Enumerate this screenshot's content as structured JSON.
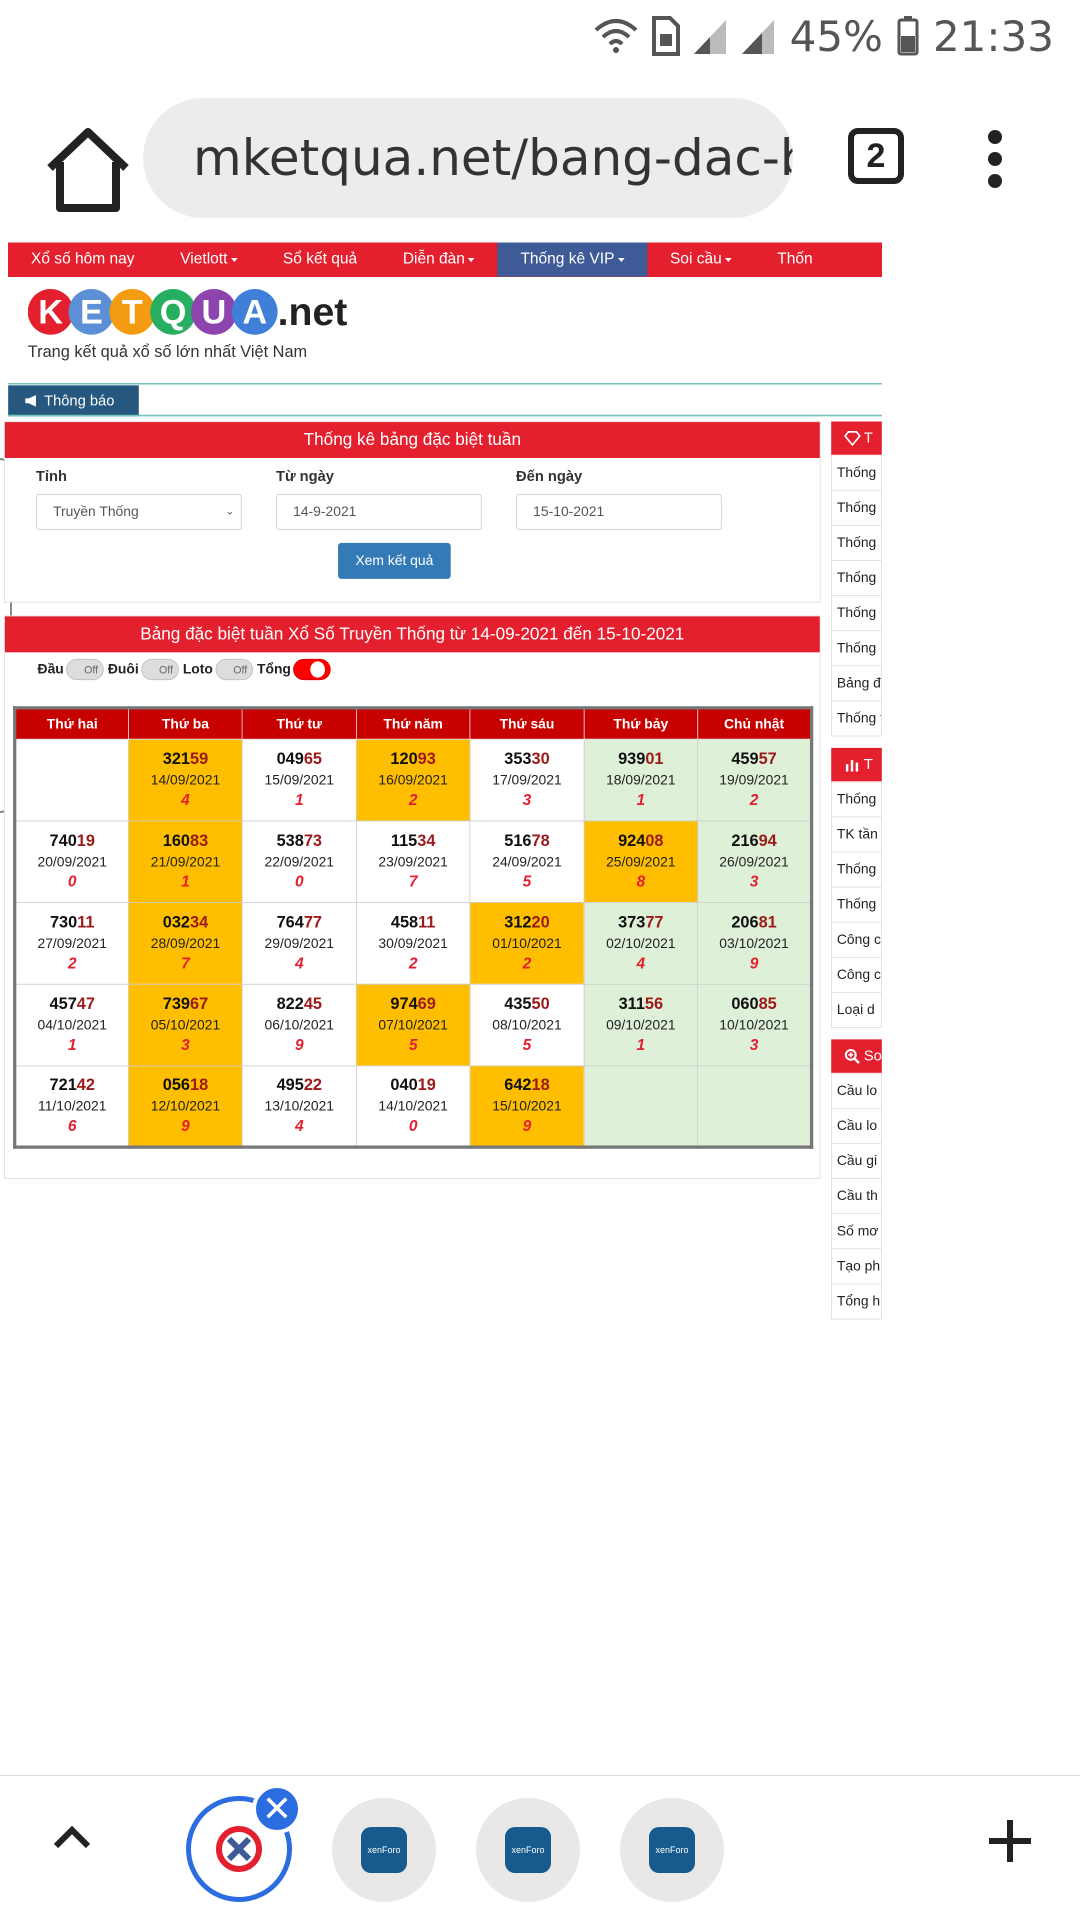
{
  "status": {
    "battery": "45%",
    "time": "21:33"
  },
  "browser": {
    "url": "mketqua.net/bang-dac-b",
    "tab_count": "2"
  },
  "nav": [
    "Xổ số hôm nay",
    "Vietlott",
    "Sổ kết quả",
    "Diễn đàn",
    "Thống kê VIP",
    "Soi cầu",
    "Thốn"
  ],
  "site": {
    "logo_letters": [
      "K",
      "E",
      "T",
      "Q",
      "U",
      "A"
    ],
    "logo_suffix": ".net",
    "tagline": "Trang kết quả xổ số lớn nhất Việt Nam",
    "notice": "Thông báo"
  },
  "form": {
    "title": "Thống kê bảng đặc biệt tuần",
    "province_label": "Tỉnh",
    "province_value": "Truyền Thống",
    "from_label": "Từ ngày",
    "from_value": "14-9-2021",
    "to_label": "Đến ngày",
    "to_value": "15-10-2021",
    "submit": "Xem kết quả"
  },
  "results": {
    "title": "Bảng đặc biệt tuần Xổ Số Truyền Thống từ 14-09-2021 đến 15-10-2021",
    "toggles": [
      {
        "label": "Đầu",
        "state": "Off"
      },
      {
        "label": "Đuôi",
        "state": "Off"
      },
      {
        "label": "Loto",
        "state": "Off"
      },
      {
        "label": "Tổng",
        "state": "On"
      }
    ],
    "headers": [
      "Thứ hai",
      "Thứ ba",
      "Thứ tư",
      "Thứ năm",
      "Thứ sáu",
      "Thứ bảy",
      "Chủ nhật"
    ],
    "rows": [
      [
        {},
        {
          "head": "321",
          "tail": "59",
          "date": "14/09/2021",
          "total": "4",
          "hl": "yellow"
        },
        {
          "head": "049",
          "tail": "65",
          "date": "15/09/2021",
          "total": "1"
        },
        {
          "head": "120",
          "tail": "93",
          "date": "16/09/2021",
          "total": "2",
          "hl": "yellow"
        },
        {
          "head": "353",
          "tail": "30",
          "date": "17/09/2021",
          "total": "3"
        },
        {
          "head": "939",
          "tail": "01",
          "date": "18/09/2021",
          "total": "1",
          "hl": "green"
        },
        {
          "head": "459",
          "tail": "57",
          "date": "19/09/2021",
          "total": "2",
          "hl": "green"
        }
      ],
      [
        {
          "head": "740",
          "tail": "19",
          "date": "20/09/2021",
          "total": "0"
        },
        {
          "head": "160",
          "tail": "83",
          "date": "21/09/2021",
          "total": "1",
          "hl": "yellow"
        },
        {
          "head": "538",
          "tail": "73",
          "date": "22/09/2021",
          "total": "0"
        },
        {
          "head": "115",
          "tail": "34",
          "date": "23/09/2021",
          "total": "7"
        },
        {
          "head": "516",
          "tail": "78",
          "date": "24/09/2021",
          "total": "5"
        },
        {
          "head": "924",
          "tail": "08",
          "date": "25/09/2021",
          "total": "8",
          "hl": "yellow"
        },
        {
          "head": "216",
          "tail": "94",
          "date": "26/09/2021",
          "total": "3",
          "hl": "green"
        }
      ],
      [
        {
          "head": "730",
          "tail": "11",
          "date": "27/09/2021",
          "total": "2"
        },
        {
          "head": "032",
          "tail": "34",
          "date": "28/09/2021",
          "total": "7",
          "hl": "yellow"
        },
        {
          "head": "764",
          "tail": "77",
          "date": "29/09/2021",
          "total": "4"
        },
        {
          "head": "458",
          "tail": "11",
          "date": "30/09/2021",
          "total": "2"
        },
        {
          "head": "312",
          "tail": "20",
          "date": "01/10/2021",
          "total": "2",
          "hl": "yellow"
        },
        {
          "head": "373",
          "tail": "77",
          "date": "02/10/2021",
          "total": "4",
          "hl": "green"
        },
        {
          "head": "206",
          "tail": "81",
          "date": "03/10/2021",
          "total": "9",
          "hl": "green"
        }
      ],
      [
        {
          "head": "457",
          "tail": "47",
          "date": "04/10/2021",
          "total": "1"
        },
        {
          "head": "739",
          "tail": "67",
          "date": "05/10/2021",
          "total": "3",
          "hl": "yellow"
        },
        {
          "head": "822",
          "tail": "45",
          "date": "06/10/2021",
          "total": "9"
        },
        {
          "head": "974",
          "tail": "69",
          "date": "07/10/2021",
          "total": "5",
          "hl": "yellow"
        },
        {
          "head": "435",
          "tail": "50",
          "date": "08/10/2021",
          "total": "5"
        },
        {
          "head": "311",
          "tail": "56",
          "date": "09/10/2021",
          "total": "1",
          "hl": "green"
        },
        {
          "head": "060",
          "tail": "85",
          "date": "10/10/2021",
          "total": "3",
          "hl": "green"
        }
      ],
      [
        {
          "head": "721",
          "tail": "42",
          "date": "11/10/2021",
          "total": "6"
        },
        {
          "head": "056",
          "tail": "18",
          "date": "12/10/2021",
          "total": "9",
          "hl": "yellow"
        },
        {
          "head": "495",
          "tail": "22",
          "date": "13/10/2021",
          "total": "4"
        },
        {
          "head": "040",
          "tail": "19",
          "date": "14/10/2021",
          "total": "0"
        },
        {
          "head": "642",
          "tail": "18",
          "date": "15/10/2021",
          "total": "9",
          "hl": "yellow"
        },
        {
          "hl": "green"
        },
        {
          "hl": "green"
        }
      ]
    ]
  },
  "sidebar": {
    "section1": {
      "title": "T",
      "items": [
        "Thống",
        "Thống loto",
        "Thống",
        "Thống loto",
        "Thống",
        "Thống",
        "Bảng đ",
        "Thống theo Đ"
      ]
    },
    "section2": {
      "title": "T",
      "items": [
        "Thống",
        "TK tần",
        "Thống",
        "Thống",
        "Công c",
        "Công c VIP",
        "Loại d"
      ]
    },
    "section3": {
      "title": "So",
      "items": [
        "Cầu lo",
        "Cầu lo",
        "Cầu gi",
        "Cầu th",
        "Số mơ",
        "Tạo ph",
        "Tổng h"
      ]
    }
  },
  "colors": {
    "brand_red": "#e4202f",
    "nav_vip": "#3f5b97",
    "highlight_yellow": "#ffbe00",
    "highlight_green": "#dff0d8",
    "logo_balls": [
      "#e4202f",
      "#5b8fd6",
      "#f39c12",
      "#27ae60",
      "#8e44ad",
      "#3f7fd8"
    ]
  },
  "bottom": {
    "tabs": [
      "xenForo",
      "xenForo",
      "xenForo"
    ]
  }
}
